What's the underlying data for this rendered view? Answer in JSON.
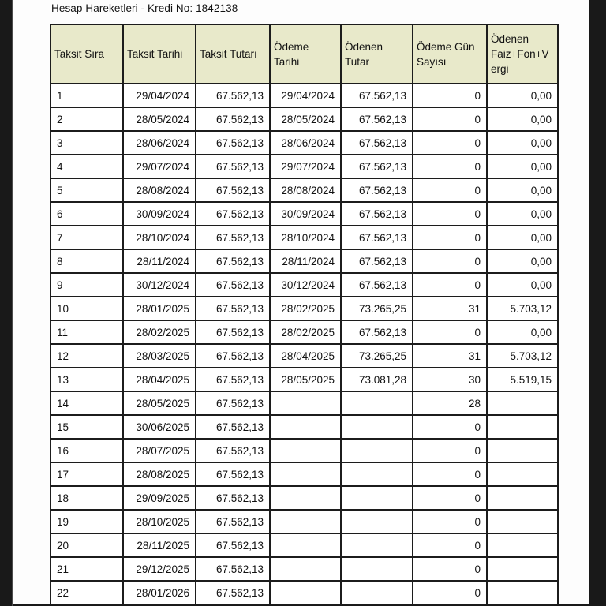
{
  "page": {
    "title": "Hesap Hareketleri - Kredi No: 1842138"
  },
  "colors": {
    "header_bg": "#e8e9ca",
    "border": "#1c1c1c",
    "bezel": "#191919",
    "content_bg": "#fdfdfd"
  },
  "table": {
    "headers": [
      "Taksit Sıra",
      "Taksit Tarihi",
      "Taksit Tutarı",
      "Ödeme Tarihi",
      "Ödenen Tutar",
      "Ödeme Gün Sayısı",
      "Ödenen Faiz+Fon+Vergi"
    ],
    "column_keys": [
      "taksit-sira",
      "taksit-tarihi",
      "taksit-tutari",
      "odeme-tarihi",
      "odenen-tutar",
      "odeme-gun-sayisi",
      "odenen-faiz-fon-vergi"
    ],
    "rows": [
      [
        "1",
        "29/04/2024",
        "67.562,13",
        "29/04/2024",
        "67.562,13",
        "0",
        "0,00"
      ],
      [
        "2",
        "28/05/2024",
        "67.562,13",
        "28/05/2024",
        "67.562,13",
        "0",
        "0,00"
      ],
      [
        "3",
        "28/06/2024",
        "67.562,13",
        "28/06/2024",
        "67.562,13",
        "0",
        "0,00"
      ],
      [
        "4",
        "29/07/2024",
        "67.562,13",
        "29/07/2024",
        "67.562,13",
        "0",
        "0,00"
      ],
      [
        "5",
        "28/08/2024",
        "67.562,13",
        "28/08/2024",
        "67.562,13",
        "0",
        "0,00"
      ],
      [
        "6",
        "30/09/2024",
        "67.562,13",
        "30/09/2024",
        "67.562,13",
        "0",
        "0,00"
      ],
      [
        "7",
        "28/10/2024",
        "67.562,13",
        "28/10/2024",
        "67.562,13",
        "0",
        "0,00"
      ],
      [
        "8",
        "28/11/2024",
        "67.562,13",
        "28/11/2024",
        "67.562,13",
        "0",
        "0,00"
      ],
      [
        "9",
        "30/12/2024",
        "67.562,13",
        "30/12/2024",
        "67.562,13",
        "0",
        "0,00"
      ],
      [
        "10",
        "28/01/2025",
        "67.562,13",
        "28/02/2025",
        "73.265,25",
        "31",
        "5.703,12"
      ],
      [
        "11",
        "28/02/2025",
        "67.562,13",
        "28/02/2025",
        "67.562,13",
        "0",
        "0,00"
      ],
      [
        "12",
        "28/03/2025",
        "67.562,13",
        "28/04/2025",
        "73.265,25",
        "31",
        "5.703,12"
      ],
      [
        "13",
        "28/04/2025",
        "67.562,13",
        "28/05/2025",
        "73.081,28",
        "30",
        "5.519,15"
      ],
      [
        "14",
        "28/05/2025",
        "67.562,13",
        "",
        "",
        "28",
        ""
      ],
      [
        "15",
        "30/06/2025",
        "67.562,13",
        "",
        "",
        "0",
        ""
      ],
      [
        "16",
        "28/07/2025",
        "67.562,13",
        "",
        "",
        "0",
        ""
      ],
      [
        "17",
        "28/08/2025",
        "67.562,13",
        "",
        "",
        "0",
        ""
      ],
      [
        "18",
        "29/09/2025",
        "67.562,13",
        "",
        "",
        "0",
        ""
      ],
      [
        "19",
        "28/10/2025",
        "67.562,13",
        "",
        "",
        "0",
        ""
      ],
      [
        "20",
        "28/11/2025",
        "67.562,13",
        "",
        "",
        "0",
        ""
      ],
      [
        "21",
        "29/12/2025",
        "67.562,13",
        "",
        "",
        "0",
        ""
      ],
      [
        "22",
        "28/01/2026",
        "67.562,13",
        "",
        "",
        "0",
        ""
      ]
    ]
  }
}
